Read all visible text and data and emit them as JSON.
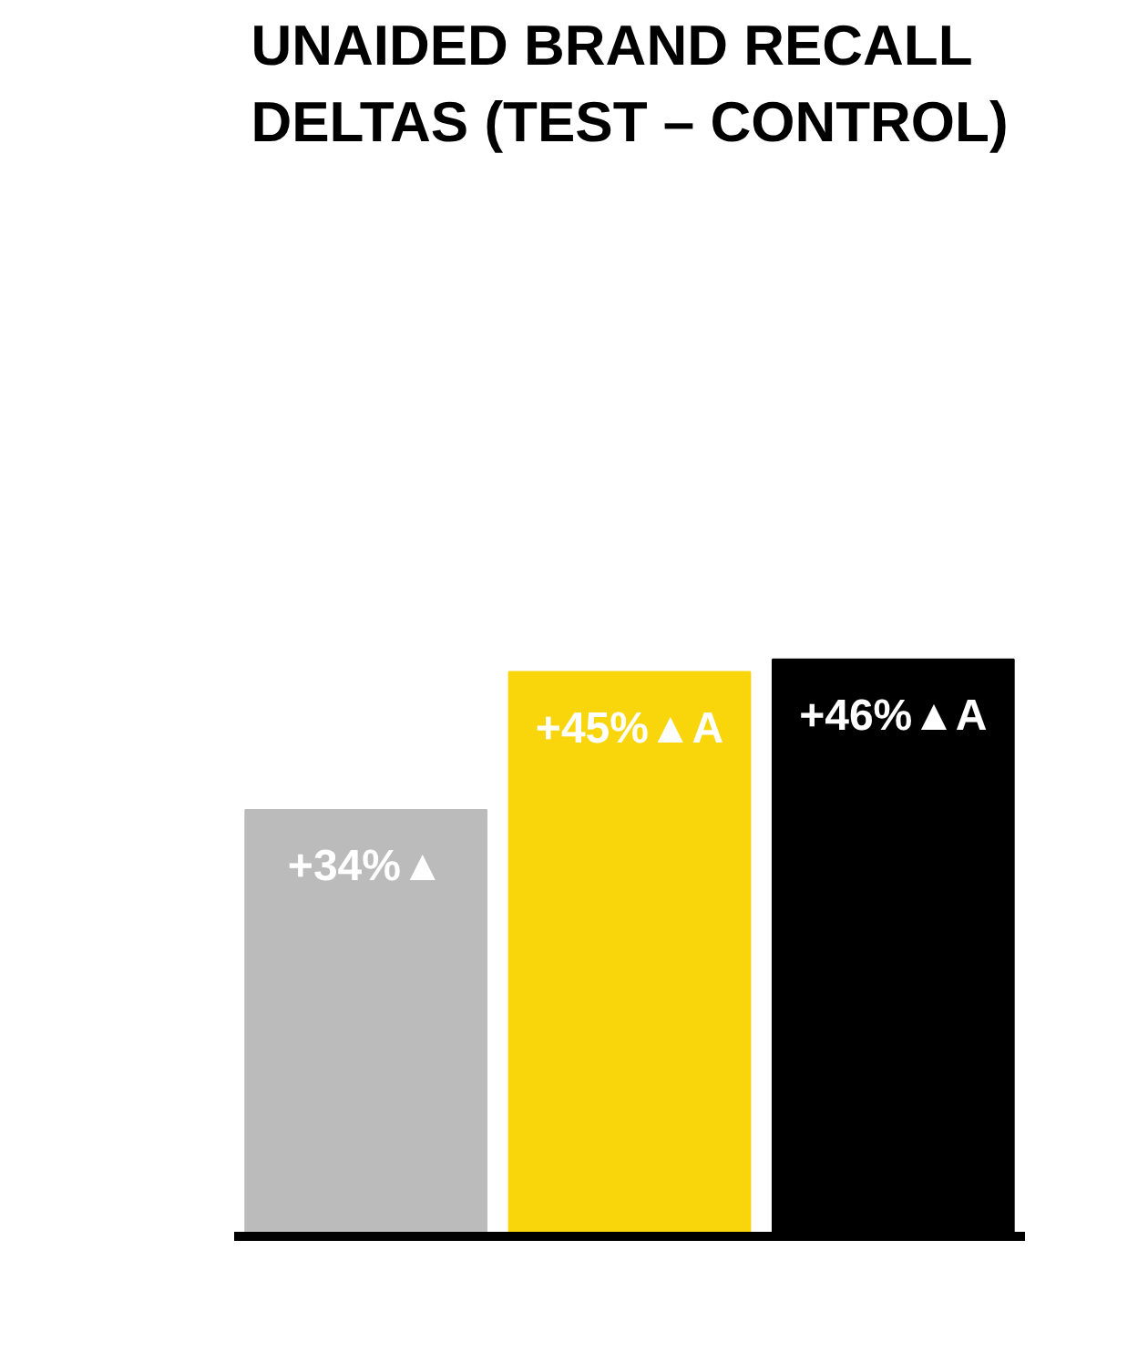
{
  "chart_data": {
    "type": "bar",
    "title": "UNAIDED BRAND RECALL\nDELTAS (TEST – CONTROL)",
    "categories": [
      null,
      null,
      null
    ],
    "values": [
      34,
      45,
      46
    ],
    "colors": [
      "#bbbbbb",
      "#f9d50c",
      "#000000"
    ],
    "value_labels": [
      "+34%▲",
      "+45%▲A",
      "+46%▲A"
    ],
    "tick_labels": false,
    "grid": false
  }
}
